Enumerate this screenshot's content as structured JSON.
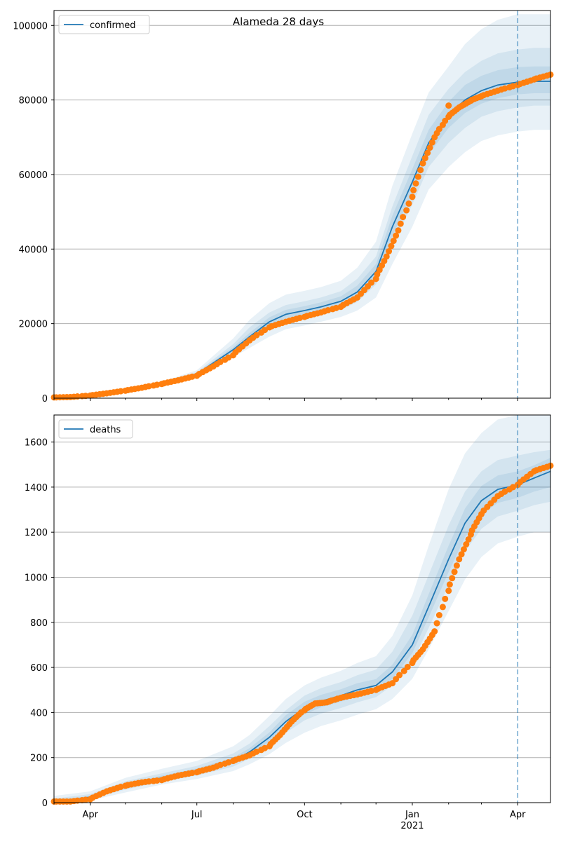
{
  "title": "Alameda 28 days",
  "colors": {
    "model_line": "#1f77b4",
    "observed": "#ff7f0e",
    "band": "#1f77b4",
    "grid": "#b0b0b0",
    "forecast_line": "#1f77b4"
  },
  "chart_data": [
    {
      "type": "line",
      "legend": "confirmed",
      "legend_position": "top-left",
      "grid_y": true,
      "ylim": [
        0,
        104000
      ],
      "yticks": [
        "0",
        "20000",
        "40000",
        "60000",
        "80000",
        "100000"
      ],
      "xlim": [
        "2020-03-01",
        "2021-04-29"
      ],
      "forecast_start": "2021-04-01",
      "model": {
        "x": [
          "2020-03-01",
          "2020-04-01",
          "2020-05-01",
          "2020-06-01",
          "2020-07-01",
          "2020-08-01",
          "2020-08-15",
          "2020-09-01",
          "2020-09-15",
          "2020-10-01",
          "2020-10-15",
          "2020-11-01",
          "2020-11-15",
          "2020-12-01",
          "2020-12-15",
          "2021-01-01",
          "2021-01-15",
          "2021-02-01",
          "2021-02-15",
          "2021-03-01",
          "2021-03-15",
          "2021-04-01",
          "2021-04-15",
          "2021-04-29"
        ],
        "y": [
          0,
          800,
          2000,
          3800,
          6500,
          13000,
          16500,
          20500,
          22500,
          23500,
          24500,
          26000,
          28500,
          34000,
          46000,
          58000,
          68500,
          76000,
          80000,
          82500,
          84000,
          84800,
          85000,
          85000
        ]
      },
      "bands": [
        {
          "lower": [
            0,
            700,
            1700,
            3300,
            5700,
            11000,
            13500,
            16500,
            18500,
            19500,
            20500,
            21800,
            23500,
            27000,
            36000,
            46000,
            56000,
            62000,
            66000,
            69000,
            70500,
            71500,
            72000,
            72000
          ],
          "upper": [
            0,
            900,
            2400,
            4400,
            7500,
            16000,
            21000,
            25500,
            27800,
            28800,
            29800,
            31500,
            35000,
            42000,
            57000,
            71000,
            82000,
            89000,
            95000,
            99000,
            101500,
            103000,
            103000,
            103000
          ]
        },
        {
          "lower": [
            0,
            740,
            1820,
            3500,
            6000,
            12000,
            15000,
            18500,
            20500,
            21300,
            22300,
            23700,
            25800,
            30500,
            41000,
            52000,
            62000,
            68500,
            72500,
            75500,
            77000,
            78000,
            78500,
            78500
          ],
          "upper": [
            0,
            860,
            2200,
            4100,
            7000,
            14500,
            19000,
            23000,
            25000,
            26000,
            27000,
            28700,
            32000,
            38000,
            51500,
            65000,
            76000,
            83000,
            87500,
            90500,
            92500,
            93500,
            94000,
            94000
          ]
        },
        {
          "lower": [
            0,
            770,
            1900,
            3650,
            6250,
            12500,
            15800,
            19500,
            21500,
            22400,
            23400,
            24800,
            27100,
            32200,
            43500,
            55000,
            65500,
            72500,
            76500,
            79000,
            80500,
            81500,
            81800,
            81800
          ],
          "upper": [
            0,
            830,
            2100,
            3950,
            6750,
            13700,
            17500,
            21700,
            23700,
            24700,
            25700,
            27300,
            30200,
            36000,
            49000,
            61500,
            72000,
            79500,
            84000,
            86500,
            88000,
            88800,
            89000,
            89000
          ]
        }
      ],
      "observed": {
        "x": [
          "2020-03-01",
          "2020-03-15",
          "2020-04-01",
          "2020-04-15",
          "2020-05-01",
          "2020-05-15",
          "2020-06-01",
          "2020-06-15",
          "2020-07-01",
          "2020-07-15",
          "2020-08-01",
          "2020-08-15",
          "2020-09-01",
          "2020-09-15",
          "2020-10-01",
          "2020-10-15",
          "2020-11-01",
          "2020-11-15",
          "2020-12-01",
          "2020-12-10",
          "2020-12-20",
          "2021-01-01",
          "2021-01-10",
          "2021-01-20",
          "2021-02-01",
          "2021-02-10",
          "2021-02-20",
          "2021-03-01",
          "2021-03-15",
          "2021-04-01",
          "2021-04-15",
          "2021-04-29"
        ],
        "y": [
          200,
          300,
          700,
          1300,
          2000,
          2800,
          3800,
          4800,
          6000,
          8500,
          11500,
          15500,
          19000,
          20500,
          21800,
          23000,
          24500,
          27000,
          32000,
          38000,
          45000,
          54000,
          63000,
          70000,
          75500,
          78000,
          79800,
          81000,
          82500,
          84000,
          85500,
          86800
        ],
        "outliers": [
          {
            "x": "2021-02-01",
            "y": 78500
          }
        ]
      }
    },
    {
      "type": "line",
      "legend": "deaths",
      "legend_position": "top-left",
      "grid_y": true,
      "ylim": [
        0,
        1720
      ],
      "yticks": [
        "0",
        "200",
        "400",
        "600",
        "800",
        "1000",
        "1200",
        "1400",
        "1600"
      ],
      "xlim": [
        "2020-03-01",
        "2021-04-29"
      ],
      "xticks": [
        {
          "date": "2020-04-01",
          "label": "Apr"
        },
        {
          "date": "2020-07-01",
          "label": "Jul"
        },
        {
          "date": "2020-10-01",
          "label": "Oct"
        },
        {
          "date": "2021-01-01",
          "label": "Jan",
          "sublabel": "2021"
        },
        {
          "date": "2021-04-01",
          "label": "Apr"
        }
      ],
      "forecast_start": "2021-04-01",
      "model": {
        "x": [
          "2020-03-01",
          "2020-04-01",
          "2020-05-01",
          "2020-06-01",
          "2020-07-01",
          "2020-08-01",
          "2020-08-15",
          "2020-09-01",
          "2020-09-15",
          "2020-10-01",
          "2020-10-15",
          "2020-11-01",
          "2020-11-15",
          "2020-12-01",
          "2020-12-15",
          "2021-01-01",
          "2021-01-15",
          "2021-02-01",
          "2021-02-15",
          "2021-03-01",
          "2021-03-15",
          "2021-04-01",
          "2021-04-15",
          "2021-04-29"
        ],
        "y": [
          0,
          25,
          75,
          110,
          140,
          185,
          225,
          290,
          360,
          420,
          450,
          475,
          500,
          520,
          580,
          700,
          870,
          1080,
          1240,
          1340,
          1390,
          1410,
          1440,
          1470
        ]
      },
      "bands": [
        {
          "lower": [
            0,
            10,
            45,
            80,
            105,
            140,
            170,
            215,
            265,
            310,
            340,
            365,
            390,
            415,
            460,
            550,
            680,
            850,
            990,
            1090,
            1150,
            1180,
            1200,
            1200
          ],
          "upper": [
            30,
            50,
            110,
            150,
            185,
            250,
            300,
            385,
            460,
            520,
            555,
            585,
            620,
            650,
            740,
            920,
            1140,
            1390,
            1550,
            1640,
            1700,
            1720,
            1720,
            1720
          ]
        },
        {
          "lower": [
            0,
            17,
            58,
            93,
            120,
            160,
            195,
            250,
            310,
            365,
            395,
            420,
            445,
            468,
            520,
            625,
            775,
            965,
            1115,
            1215,
            1270,
            1295,
            1320,
            1335
          ],
          "upper": [
            18,
            38,
            95,
            130,
            163,
            218,
            262,
            340,
            410,
            475,
            508,
            535,
            565,
            590,
            670,
            830,
            1010,
            1230,
            1380,
            1470,
            1520,
            1540,
            1555,
            1565
          ]
        },
        {
          "lower": [
            0,
            21,
            67,
            102,
            130,
            172,
            210,
            270,
            335,
            392,
            423,
            448,
            473,
            494,
            550,
            663,
            822,
            1023,
            1178,
            1278,
            1330,
            1352,
            1380,
            1400
          ],
          "upper": [
            9,
            31,
            85,
            120,
            152,
            200,
            242,
            312,
            388,
            448,
            478,
            503,
            530,
            548,
            612,
            745,
            925,
            1140,
            1305,
            1405,
            1452,
            1470,
            1497,
            1530
          ]
        }
      ],
      "observed": {
        "x": [
          "2020-03-01",
          "2020-03-15",
          "2020-04-01",
          "2020-04-15",
          "2020-05-01",
          "2020-05-15",
          "2020-06-01",
          "2020-06-15",
          "2020-07-01",
          "2020-07-15",
          "2020-08-01",
          "2020-08-15",
          "2020-09-01",
          "2020-09-10",
          "2020-09-20",
          "2020-10-01",
          "2020-10-10",
          "2020-10-20",
          "2020-11-01",
          "2020-11-15",
          "2020-12-01",
          "2020-12-15",
          "2021-01-01",
          "2021-01-10",
          "2021-01-20",
          "2021-02-01",
          "2021-02-10",
          "2021-02-20",
          "2021-03-01",
          "2021-03-15",
          "2021-04-01",
          "2021-04-15",
          "2021-04-29"
        ],
        "y": [
          5,
          5,
          15,
          50,
          75,
          90,
          100,
          120,
          135,
          155,
          185,
          210,
          250,
          300,
          360,
          410,
          440,
          445,
          465,
          480,
          500,
          530,
          620,
          680,
          760,
          940,
          1080,
          1190,
          1280,
          1360,
          1410,
          1470,
          1495
        ]
      }
    }
  ]
}
